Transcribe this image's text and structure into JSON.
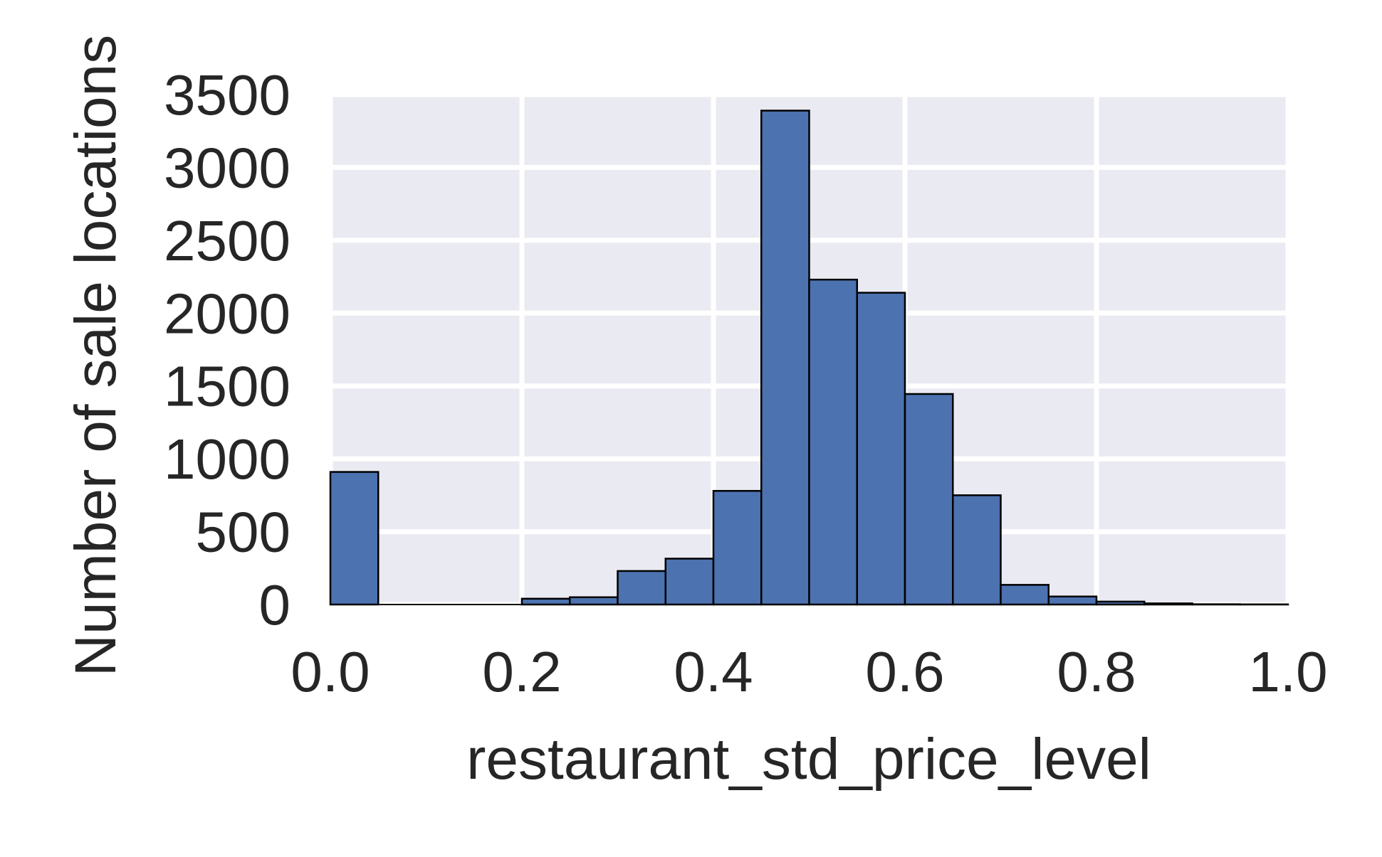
{
  "chart_data": {
    "type": "bar",
    "title": "",
    "xlabel": "restaurant_std_price_level",
    "ylabel": "Number of sale locations",
    "xlim": [
      0.0,
      1.0
    ],
    "ylim": [
      0,
      3500
    ],
    "xticks": [
      "0.0",
      "0.2",
      "0.4",
      "0.6",
      "0.8",
      "1.0"
    ],
    "yticks": [
      "0",
      "500",
      "1000",
      "1500",
      "2000",
      "2500",
      "3000",
      "3500"
    ],
    "grid": true,
    "bin_width": 0.05,
    "bins": [
      {
        "x0": 0.0,
        "x1": 0.05,
        "count": 910
      },
      {
        "x0": 0.05,
        "x1": 0.1,
        "count": 0
      },
      {
        "x0": 0.1,
        "x1": 0.15,
        "count": 0
      },
      {
        "x0": 0.15,
        "x1": 0.2,
        "count": 0
      },
      {
        "x0": 0.2,
        "x1": 0.25,
        "count": 40
      },
      {
        "x0": 0.25,
        "x1": 0.3,
        "count": 50
      },
      {
        "x0": 0.3,
        "x1": 0.35,
        "count": 230
      },
      {
        "x0": 0.35,
        "x1": 0.4,
        "count": 315
      },
      {
        "x0": 0.4,
        "x1": 0.45,
        "count": 780
      },
      {
        "x0": 0.45,
        "x1": 0.5,
        "count": 3390
      },
      {
        "x0": 0.5,
        "x1": 0.55,
        "count": 2230
      },
      {
        "x0": 0.55,
        "x1": 0.6,
        "count": 2140
      },
      {
        "x0": 0.6,
        "x1": 0.65,
        "count": 1445
      },
      {
        "x0": 0.65,
        "x1": 0.7,
        "count": 750
      },
      {
        "x0": 0.7,
        "x1": 0.75,
        "count": 135
      },
      {
        "x0": 0.75,
        "x1": 0.8,
        "count": 55
      },
      {
        "x0": 0.8,
        "x1": 0.85,
        "count": 20
      },
      {
        "x0": 0.85,
        "x1": 0.9,
        "count": 8
      },
      {
        "x0": 0.9,
        "x1": 0.95,
        "count": 2
      },
      {
        "x0": 0.95,
        "x1": 1.0,
        "count": 1
      }
    ],
    "colors": {
      "bar_fill": "#4c72b0",
      "bar_edge": "#000000",
      "plot_background": "#eaeaf2",
      "grid": "#ffffff",
      "text": "#262626"
    }
  }
}
